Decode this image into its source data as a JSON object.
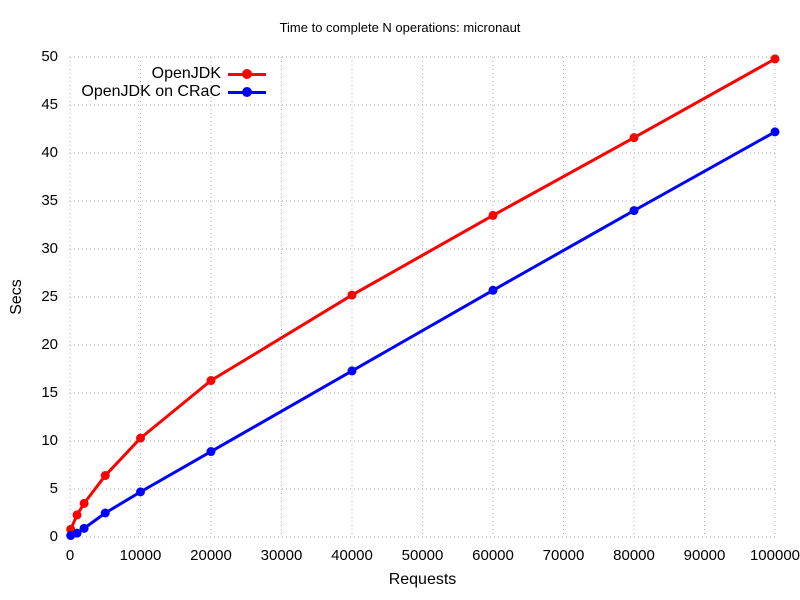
{
  "page": {
    "background": "#ffffff",
    "text_color": "#000000"
  },
  "chart_data": {
    "type": "line",
    "title": "Time to complete N operations: micronaut",
    "xlabel": "Requests",
    "ylabel": "Secs",
    "xlim": [
      0,
      100000
    ],
    "ylim": [
      0,
      50
    ],
    "x_ticks": [
      0,
      10000,
      20000,
      30000,
      40000,
      50000,
      60000,
      70000,
      80000,
      90000,
      100000
    ],
    "y_ticks": [
      0,
      5,
      10,
      15,
      20,
      25,
      30,
      35,
      40,
      45,
      50
    ],
    "grid": "dotted",
    "grid_color": "#b3b3b3",
    "legend_position": "top-left-inside",
    "x": [
      100,
      1000,
      2000,
      5000,
      10000,
      20000,
      40000,
      60000,
      80000,
      100000
    ],
    "series": [
      {
        "name": "OpenJDK",
        "color": "#ff0000",
        "values": [
          0.8,
          2.3,
          3.5,
          6.4,
          10.3,
          16.3,
          25.2,
          33.5,
          41.6,
          49.8
        ]
      },
      {
        "name": "OpenJDK on CRaC",
        "color": "#0000ff",
        "values": [
          0.15,
          0.4,
          0.9,
          2.5,
          4.7,
          8.9,
          17.3,
          25.7,
          34.0,
          42.2
        ]
      }
    ]
  }
}
